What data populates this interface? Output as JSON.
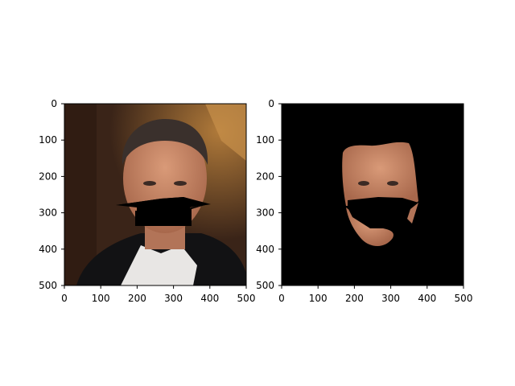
{
  "panels": [
    {
      "id": "original",
      "x_ticks": [
        "0",
        "100",
        "200",
        "300",
        "400",
        "500"
      ],
      "y_ticks": [
        "0",
        "100",
        "200",
        "300",
        "400",
        "500"
      ]
    },
    {
      "id": "face-mask",
      "x_ticks": [
        "0",
        "100",
        "200",
        "300",
        "400",
        "500"
      ],
      "y_ticks": [
        "0",
        "100",
        "200",
        "300",
        "400",
        "500"
      ]
    }
  ],
  "colors": {
    "background_dark": "#3a2418",
    "warm_light": "#b07a3a",
    "skin": "#c98a6a",
    "hair": "#3a302c",
    "suit": "#121214",
    "shirt": "#e8e6e4",
    "mask": "#000000"
  }
}
